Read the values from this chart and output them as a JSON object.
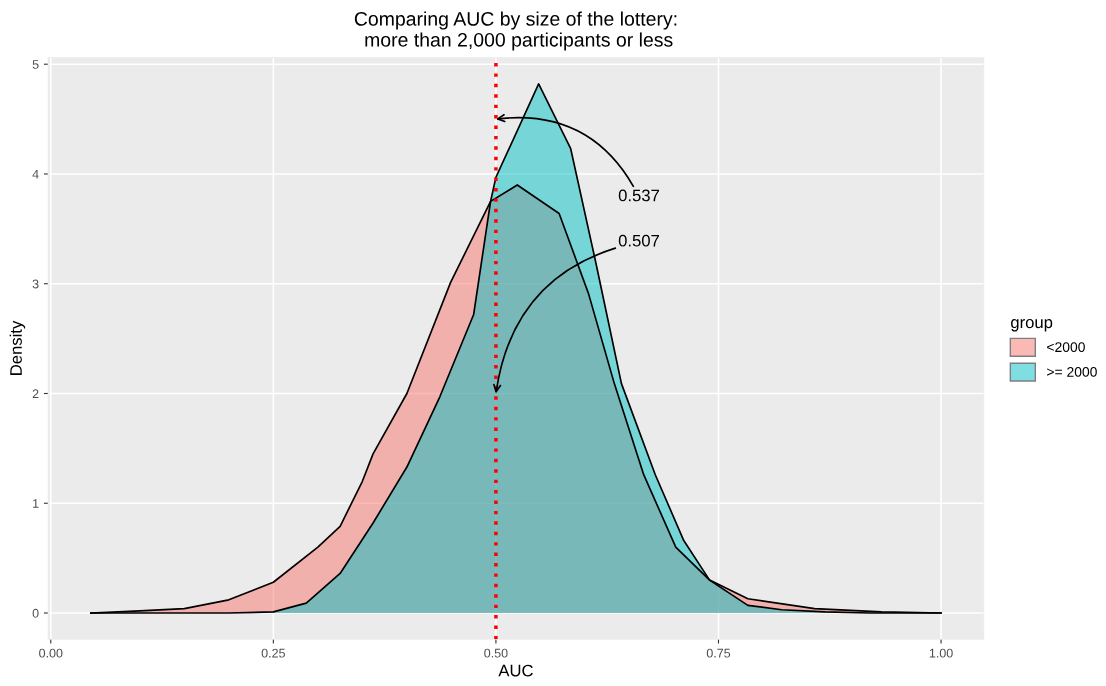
{
  "chart_data": {
    "type": "area",
    "title": "Comparing AUC by size of the lottery:\n more than 2,000 participants or less",
    "xlabel": "AUC",
    "ylabel": "Density",
    "legend_title": "group",
    "series": [
      {
        "name": "<2000",
        "color": "#f8766d",
        "x": [
          0.045,
          0.1,
          0.15,
          0.2,
          0.25,
          0.3,
          0.325,
          0.35,
          0.362,
          0.4,
          0.449,
          0.494,
          0.524,
          0.571,
          0.604,
          0.633,
          0.666,
          0.702,
          0.74,
          0.783,
          0.858,
          0.933,
          1.0
        ],
        "values": [
          0,
          0.02,
          0.04,
          0.12,
          0.28,
          0.6,
          0.79,
          1.2,
          1.45,
          2.0,
          3.01,
          3.75,
          3.9,
          3.64,
          2.91,
          2.09,
          1.26,
          0.6,
          0.3,
          0.13,
          0.04,
          0.01,
          0
        ]
      },
      {
        "name": ">= 2000",
        "color": "#00bfc4",
        "x": [
          0.045,
          0.2,
          0.25,
          0.287,
          0.325,
          0.362,
          0.4,
          0.437,
          0.475,
          0.494,
          0.5,
          0.548,
          0.584,
          0.612,
          0.641,
          0.679,
          0.711,
          0.74,
          0.783,
          0.821,
          0.87,
          0.92,
          1.0
        ],
        "values": [
          0,
          0,
          0.01,
          0.09,
          0.36,
          0.82,
          1.33,
          1.97,
          2.72,
          3.75,
          3.97,
          4.82,
          4.23,
          3.2,
          2.09,
          1.26,
          0.66,
          0.3,
          0.07,
          0.03,
          0.01,
          0,
          0
        ]
      }
    ],
    "xlim": [
      -0.003,
      1.048
    ],
    "xticks": [
      {
        "value": 0,
        "label": "0.00"
      },
      {
        "value": 0.25,
        "label": "0.25"
      },
      {
        "value": 0.5,
        "label": "0.50"
      },
      {
        "value": 0.75,
        "label": "0.75"
      },
      {
        "value": 1,
        "label": "1.00"
      }
    ],
    "ylim": [
      -0.24,
      5.06
    ],
    "yticks": [
      0,
      1,
      2,
      3,
      4,
      5
    ],
    "ref_lines": [
      {
        "axis": "x",
        "value": 0.5,
        "color": "#ff0000",
        "line_style": "dotted"
      }
    ],
    "annotations": [
      {
        "text": "0.537",
        "x": 0.5,
        "y": 4.5
      },
      {
        "text": "0.507",
        "x": 0.5,
        "y": 2.0
      }
    ],
    "grid": true,
    "legend": "right"
  }
}
